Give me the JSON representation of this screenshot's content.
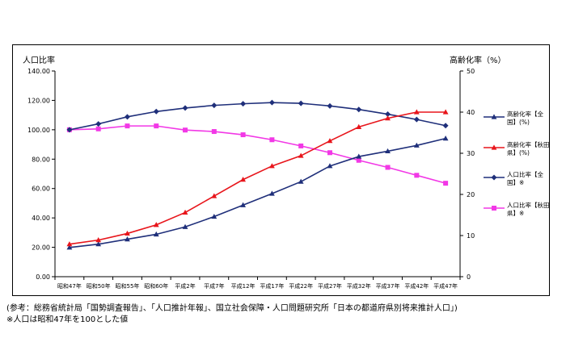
{
  "chart_data": {
    "type": "line",
    "categories": [
      "昭和47年",
      "昭和50年",
      "昭和55年",
      "昭和60年",
      "平成2年",
      "平成7年",
      "平成12年",
      "平成17年",
      "平成22年",
      "平成27年",
      "平成32年",
      "平成37年",
      "平成42年",
      "平成47年"
    ],
    "ylabel_left": "人口比率",
    "ylabel_right": "高齢化率（%）",
    "ylim_left": [
      0,
      140
    ],
    "yticks_left": [
      "0.00",
      "20.00",
      "40.00",
      "60.00",
      "80.00",
      "100.00",
      "120.00",
      "140.00"
    ],
    "ylim_right": [
      0,
      50
    ],
    "yticks_right": [
      "0",
      "10",
      "20",
      "30",
      "40",
      "50"
    ],
    "grid": false,
    "legend_position": "right",
    "series": [
      {
        "name": "高齢化率【全国】(%)",
        "axis": "right",
        "color": "#1f2f7a",
        "marker": "triangle",
        "values": [
          7.1,
          7.9,
          9.1,
          10.3,
          12.1,
          14.6,
          17.4,
          20.2,
          23.1,
          26.9,
          29.2,
          30.5,
          31.9,
          33.6
        ]
      },
      {
        "name": "高齢化率【秋田県】(%)",
        "axis": "right",
        "color": "#e8151b",
        "marker": "triangle",
        "values": [
          7.9,
          8.9,
          10.5,
          12.6,
          15.6,
          19.6,
          23.6,
          26.9,
          29.4,
          33.0,
          36.4,
          38.5,
          40.0,
          40.0
        ]
      },
      {
        "name": "人口比率【全国】※",
        "axis": "left",
        "color": "#1f2f7a",
        "marker": "diamond",
        "values": [
          100.0,
          104.0,
          108.8,
          112.4,
          114.8,
          116.6,
          117.7,
          118.5,
          118.0,
          116.2,
          113.8,
          110.6,
          107.0,
          102.8
        ]
      },
      {
        "name": "人口比率【秋田県】※",
        "axis": "left",
        "color": "#f238e6",
        "marker": "square",
        "values": [
          100.0,
          100.6,
          102.6,
          102.6,
          99.8,
          98.8,
          96.6,
          93.2,
          89.0,
          84.4,
          79.2,
          74.4,
          69.0,
          63.6
        ]
      }
    ],
    "legend": [
      {
        "line1": "高齢化率【全",
        "line2": "国】(%)"
      },
      {
        "line1": "高齢化率【秋田",
        "line2": "県】(%)"
      },
      {
        "line1": "人口比率【全",
        "line2": "国】※"
      },
      {
        "line1": "人口比率【秋田",
        "line2": "県】※"
      }
    ]
  },
  "notes": {
    "line1": "(参考：総務省統計局「国勢調査報告」、「人口推計年報」、国立社会保障・人口問題研究所「日本の都道府県別将来推計人口」)",
    "line2": "※人口は昭和47年を100とした値"
  }
}
